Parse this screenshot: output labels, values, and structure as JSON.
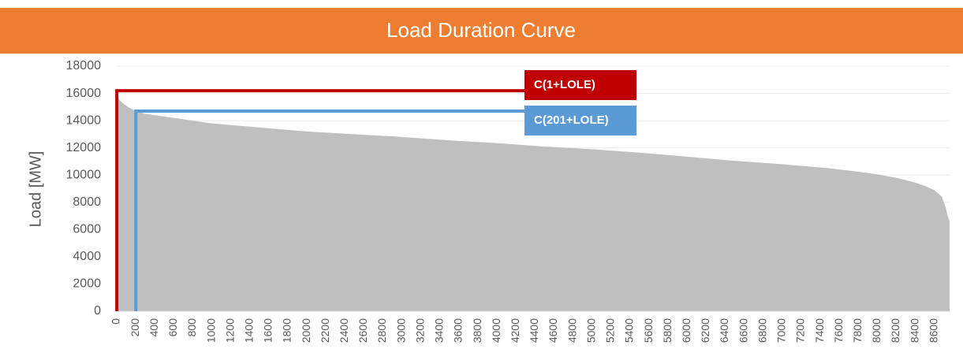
{
  "chart_data": {
    "type": "area",
    "title": "Load Duration Curve",
    "y_label": "Load [MW]",
    "color": "#bfbfbf",
    "grid": true,
    "x": [
      0,
      20,
      60,
      120,
      200,
      300,
      400,
      600,
      800,
      1000,
      1500,
      2000,
      2500,
      3000,
      3500,
      4000,
      4500,
      5000,
      5500,
      6000,
      6500,
      7000,
      7500,
      7800,
      8000,
      8200,
      8400,
      8500,
      8600,
      8680,
      8720,
      8740,
      8760
    ],
    "values": [
      15800,
      15600,
      15300,
      15000,
      14700,
      14500,
      14400,
      14200,
      14000,
      13800,
      13500,
      13200,
      13000,
      12800,
      12550,
      12350,
      12100,
      11900,
      11650,
      11350,
      11050,
      10800,
      10500,
      10250,
      10050,
      9800,
      9450,
      9200,
      8900,
      8400,
      7600,
      7000,
      6600
    ],
    "xlim": [
      0,
      8760
    ],
    "ylim": [
      0,
      18000
    ],
    "xticks": [
      0,
      200,
      400,
      600,
      800,
      1000,
      1200,
      1400,
      1600,
      1800,
      2000,
      2200,
      2400,
      2600,
      2800,
      3000,
      3200,
      3400,
      3600,
      3800,
      4000,
      4200,
      4400,
      4600,
      4800,
      5000,
      5200,
      5400,
      5600,
      5800,
      6000,
      6200,
      6400,
      6600,
      6800,
      7000,
      7200,
      7400,
      7600,
      7800,
      8000,
      8200,
      8400,
      8600
    ],
    "yticks": [
      0,
      2000,
      4000,
      6000,
      8000,
      10000,
      12000,
      14000,
      16000,
      18000
    ],
    "annotations": [
      {
        "label": "C(1+LOLE)",
        "color": "#c00000",
        "x": 1,
        "y": 16200
      },
      {
        "label": "C(201+LOLE)",
        "color": "#5b9bd5",
        "x": 201,
        "y": 14700
      }
    ]
  }
}
